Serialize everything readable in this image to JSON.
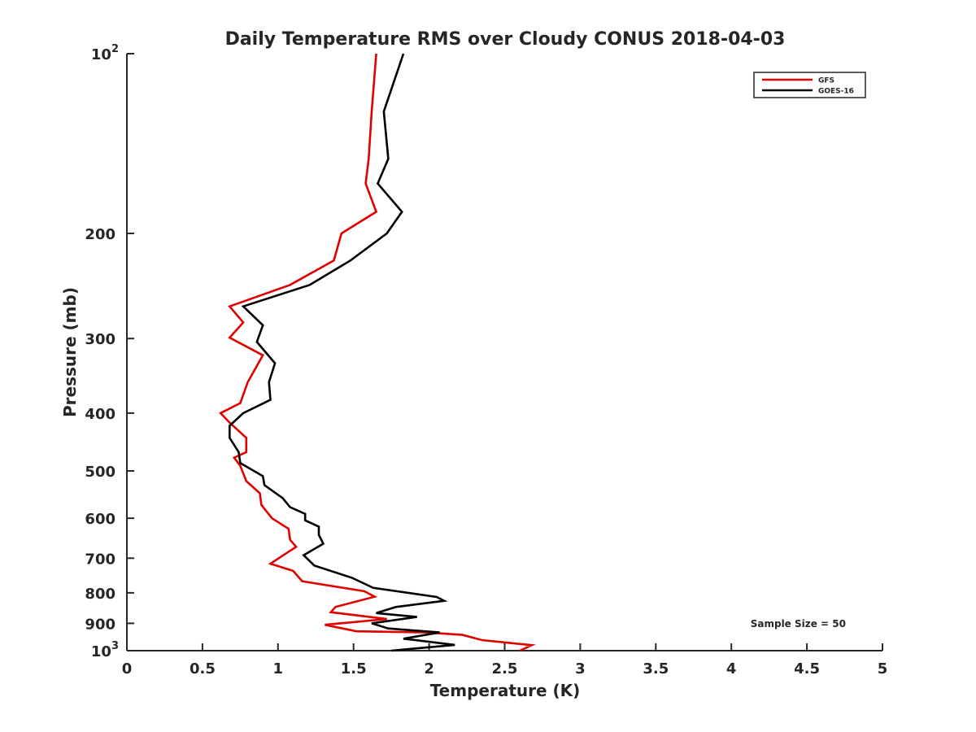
{
  "chart_data": {
    "type": "line",
    "title": "Daily Temperature RMS over Cloudy CONUS 2018-04-03",
    "xlabel": "Temperature (K)",
    "ylabel": "Pressure (mb)",
    "xlim": [
      0,
      5
    ],
    "ylim": [
      100,
      1000
    ],
    "y_scale": "log",
    "y_reversed": true,
    "grid": false,
    "legend_position": "top-right",
    "x_ticks": [
      {
        "v": 0,
        "label": "0"
      },
      {
        "v": 0.5,
        "label": "0.5"
      },
      {
        "v": 1,
        "label": "1"
      },
      {
        "v": 1.5,
        "label": "1.5"
      },
      {
        "v": 2,
        "label": "2"
      },
      {
        "v": 2.5,
        "label": "2.5"
      },
      {
        "v": 3,
        "label": "3"
      },
      {
        "v": 3.5,
        "label": "3.5"
      },
      {
        "v": 4,
        "label": "4"
      },
      {
        "v": 4.5,
        "label": "4.5"
      },
      {
        "v": 5,
        "label": "5"
      }
    ],
    "y_ticks": [
      {
        "v": 100,
        "base": "10",
        "exp": "2"
      },
      {
        "v": 200,
        "label": "200"
      },
      {
        "v": 300,
        "label": "300"
      },
      {
        "v": 400,
        "label": "400"
      },
      {
        "v": 500,
        "label": "500"
      },
      {
        "v": 600,
        "label": "600"
      },
      {
        "v": 700,
        "label": "700"
      },
      {
        "v": 800,
        "label": "800"
      },
      {
        "v": 900,
        "label": "900"
      },
      {
        "v": 1000,
        "base": "10",
        "exp": "3"
      }
    ],
    "annotation": "Sample Size = 50",
    "series": [
      {
        "name": "GFS",
        "color": "#e00000",
        "points": [
          [
            1.65,
            100
          ],
          [
            1.62,
            125
          ],
          [
            1.6,
            150
          ],
          [
            1.58,
            165
          ],
          [
            1.65,
            184
          ],
          [
            1.42,
            200
          ],
          [
            1.37,
            222
          ],
          [
            1.08,
            244
          ],
          [
            0.68,
            265
          ],
          [
            0.77,
            282
          ],
          [
            0.68,
            299
          ],
          [
            0.9,
            320
          ],
          [
            0.8,
            355
          ],
          [
            0.75,
            385
          ],
          [
            0.62,
            400
          ],
          [
            0.68,
            415
          ],
          [
            0.79,
            440
          ],
          [
            0.79,
            465
          ],
          [
            0.71,
            475
          ],
          [
            0.75,
            490
          ],
          [
            0.79,
            520
          ],
          [
            0.88,
            545
          ],
          [
            0.89,
            570
          ],
          [
            0.96,
            600
          ],
          [
            1.07,
            625
          ],
          [
            1.08,
            652
          ],
          [
            1.12,
            670
          ],
          [
            1.05,
            688
          ],
          [
            0.95,
            715
          ],
          [
            1.1,
            735
          ],
          [
            1.16,
            765
          ],
          [
            1.57,
            795
          ],
          [
            1.64,
            812
          ],
          [
            1.38,
            845
          ],
          [
            1.35,
            862
          ],
          [
            1.72,
            885
          ],
          [
            1.31,
            905
          ],
          [
            1.52,
            928
          ],
          [
            1.98,
            932
          ],
          [
            2.22,
            941
          ],
          [
            2.35,
            960
          ],
          [
            2.68,
            979
          ],
          [
            2.6,
            1000
          ]
        ]
      },
      {
        "name": "GOES-16",
        "color": "#000000",
        "points": [
          [
            1.83,
            100
          ],
          [
            1.7,
            125
          ],
          [
            1.73,
            150
          ],
          [
            1.66,
            165
          ],
          [
            1.82,
            184
          ],
          [
            1.72,
            200
          ],
          [
            1.48,
            222
          ],
          [
            1.21,
            244
          ],
          [
            0.77,
            265
          ],
          [
            0.9,
            285
          ],
          [
            0.86,
            304
          ],
          [
            0.98,
            330
          ],
          [
            0.94,
            355
          ],
          [
            0.95,
            380
          ],
          [
            0.77,
            400
          ],
          [
            0.68,
            420
          ],
          [
            0.68,
            440
          ],
          [
            0.74,
            465
          ],
          [
            0.75,
            485
          ],
          [
            0.9,
            510
          ],
          [
            0.91,
            528
          ],
          [
            1.03,
            555
          ],
          [
            1.08,
            575
          ],
          [
            1.18,
            590
          ],
          [
            1.18,
            605
          ],
          [
            1.27,
            620
          ],
          [
            1.27,
            640
          ],
          [
            1.3,
            662
          ],
          [
            1.17,
            692
          ],
          [
            1.24,
            720
          ],
          [
            1.49,
            755
          ],
          [
            1.63,
            785
          ],
          [
            2.05,
            813
          ],
          [
            2.1,
            825
          ],
          [
            1.78,
            845
          ],
          [
            1.65,
            865
          ],
          [
            1.92,
            878
          ],
          [
            1.62,
            900
          ],
          [
            1.73,
            918
          ],
          [
            2.07,
            932
          ],
          [
            1.83,
            955
          ],
          [
            2.17,
            978
          ],
          [
            1.75,
            1000
          ]
        ]
      }
    ]
  }
}
